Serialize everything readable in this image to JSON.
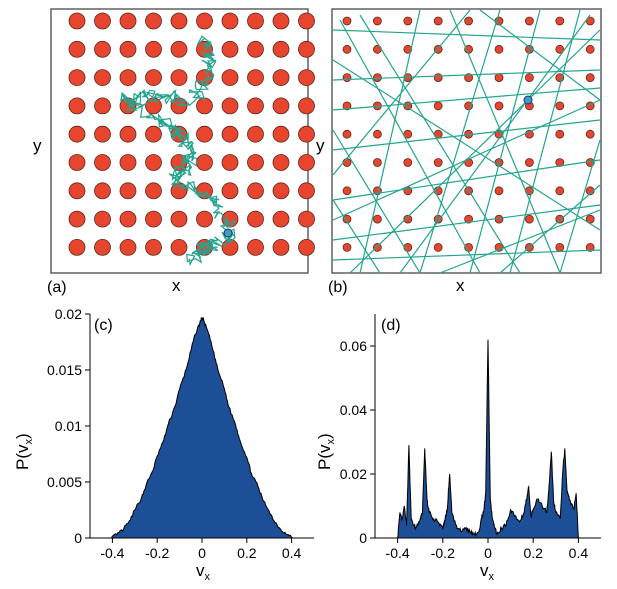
{
  "panels": {
    "a": {
      "label": "(a)",
      "xlabel": "x",
      "ylabel": "y"
    },
    "b": {
      "label": "(b)",
      "xlabel": "x",
      "ylabel": "y"
    },
    "c": {
      "label": "(c)",
      "xlabel": "v",
      "xlabel_sub": "x",
      "ylabel": "P(v",
      "ylabel_sub": "x",
      "ylabel_close": ")"
    },
    "d": {
      "label": "(d)",
      "xlabel": "v",
      "xlabel_sub": "x",
      "ylabel": "P(v",
      "ylabel_sub": "x",
      "ylabel_close": ")"
    }
  },
  "colors": {
    "obstacle": "#e8452e",
    "particle": "#3f9bd0",
    "trajectory": "#22a58f",
    "histogram_fill": "#1c4f96"
  },
  "chart_data": [
    {
      "id": "a",
      "type": "scatter",
      "description_shown": "square lattice of obstacles with random-walk trajectory",
      "grid_cols": 10,
      "grid_rows": 9
    },
    {
      "id": "b",
      "type": "scatter",
      "description_shown": "square lattice of small obstacles with ballistic trajectory",
      "grid_cols": 9,
      "grid_rows": 9
    },
    {
      "id": "c",
      "type": "area",
      "xlim": [
        -0.5,
        0.5
      ],
      "ylim": [
        0,
        0.02
      ],
      "xticks": [
        "-0.4",
        "-0.2",
        "0",
        "0.2",
        "0.4"
      ],
      "yticks": [
        "0",
        "0.005",
        "0.01",
        "0.015",
        "0.02"
      ],
      "x": [
        -0.41,
        -0.38,
        -0.35,
        -0.32,
        -0.3,
        -0.27,
        -0.25,
        -0.22,
        -0.2,
        -0.17,
        -0.15,
        -0.12,
        -0.1,
        -0.07,
        -0.05,
        -0.03,
        -0.01,
        0.0,
        0.01,
        0.03,
        0.05,
        0.07,
        0.1,
        0.12,
        0.15,
        0.17,
        0.2,
        0.22,
        0.25,
        0.27,
        0.3,
        0.32,
        0.35,
        0.38,
        0.41
      ],
      "y": [
        0.0,
        0.0003,
        0.0008,
        0.0016,
        0.0025,
        0.0036,
        0.0047,
        0.006,
        0.0073,
        0.0088,
        0.0102,
        0.0118,
        0.0133,
        0.0151,
        0.0167,
        0.0182,
        0.0192,
        0.0197,
        0.0193,
        0.0182,
        0.0167,
        0.0151,
        0.0133,
        0.0117,
        0.0101,
        0.0087,
        0.0072,
        0.0058,
        0.0046,
        0.0035,
        0.0024,
        0.0016,
        0.0008,
        0.0003,
        0.0
      ]
    },
    {
      "id": "d",
      "type": "area",
      "xlim": [
        -0.5,
        0.5
      ],
      "ylim": [
        0,
        0.07
      ],
      "xticks": [
        "-0.4",
        "-0.2",
        "0",
        "0.2",
        "0.4"
      ],
      "yticks": [
        "0",
        "0.02",
        "0.04",
        "0.06"
      ],
      "x": [
        -0.4,
        -0.39,
        -0.38,
        -0.37,
        -0.36,
        -0.35,
        -0.34,
        -0.33,
        -0.32,
        -0.3,
        -0.29,
        -0.28,
        -0.27,
        -0.26,
        -0.24,
        -0.22,
        -0.2,
        -0.19,
        -0.18,
        -0.17,
        -0.16,
        -0.14,
        -0.12,
        -0.1,
        -0.08,
        -0.06,
        -0.04,
        -0.03,
        -0.02,
        -0.01,
        0.0,
        0.01,
        0.02,
        0.03,
        0.04,
        0.06,
        0.08,
        0.1,
        0.12,
        0.14,
        0.16,
        0.17,
        0.18,
        0.19,
        0.2,
        0.22,
        0.24,
        0.26,
        0.27,
        0.28,
        0.29,
        0.3,
        0.32,
        0.33,
        0.34,
        0.35,
        0.36,
        0.38,
        0.39,
        0.4
      ],
      "y": [
        0.0,
        0.008,
        0.006,
        0.01,
        0.004,
        0.029,
        0.006,
        0.004,
        0.003,
        0.006,
        0.008,
        0.028,
        0.012,
        0.008,
        0.006,
        0.005,
        0.003,
        0.006,
        0.009,
        0.02,
        0.008,
        0.004,
        0.002,
        0.003,
        0.002,
        0.001,
        0.002,
        0.006,
        0.008,
        0.014,
        0.062,
        0.012,
        0.006,
        0.003,
        0.001,
        0.003,
        0.004,
        0.009,
        0.007,
        0.005,
        0.008,
        0.012,
        0.016,
        0.007,
        0.009,
        0.012,
        0.01,
        0.008,
        0.016,
        0.027,
        0.012,
        0.008,
        0.006,
        0.02,
        0.028,
        0.014,
        0.012,
        0.009,
        0.014,
        0.0
      ]
    }
  ]
}
